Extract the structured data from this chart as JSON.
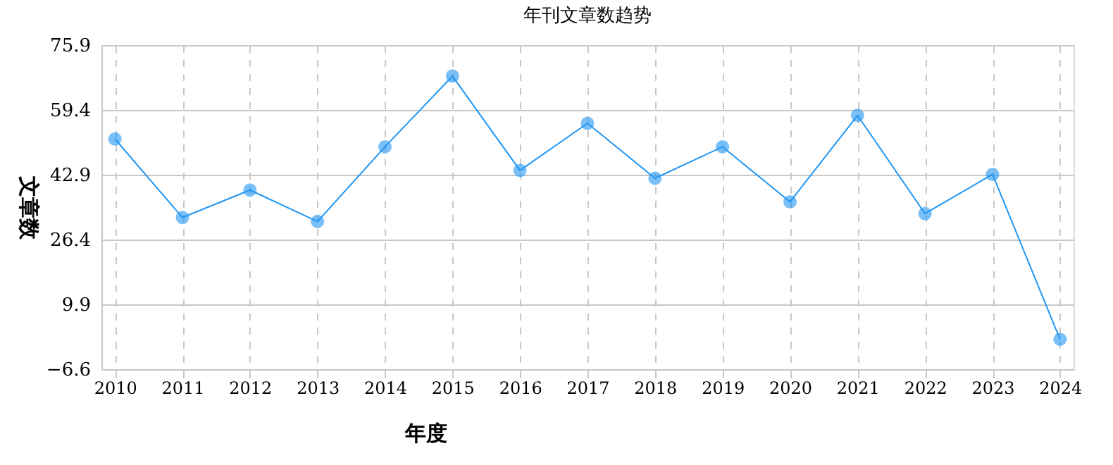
{
  "chart_data": {
    "type": "line",
    "title": "年刊文章数趋势",
    "xlabel": "年度",
    "ylabel": "文章数",
    "categories": [
      "2010",
      "2011",
      "2012",
      "2013",
      "2014",
      "2015",
      "2016",
      "2017",
      "2018",
      "2019",
      "2020",
      "2021",
      "2022",
      "2023",
      "2024"
    ],
    "series": [
      {
        "color": "#2196f3",
        "values": [
          52,
          32,
          39,
          31,
          50,
          68,
          44,
          56,
          42,
          50,
          36,
          58,
          33,
          43,
          1
        ]
      }
    ],
    "ylim": [
      -6.6,
      75.9
    ],
    "yticks": [
      -6.6,
      9.9,
      26.4,
      42.9,
      59.4,
      75.9
    ],
    "grid": true,
    "marker": "circle",
    "line_style": "solid"
  }
}
